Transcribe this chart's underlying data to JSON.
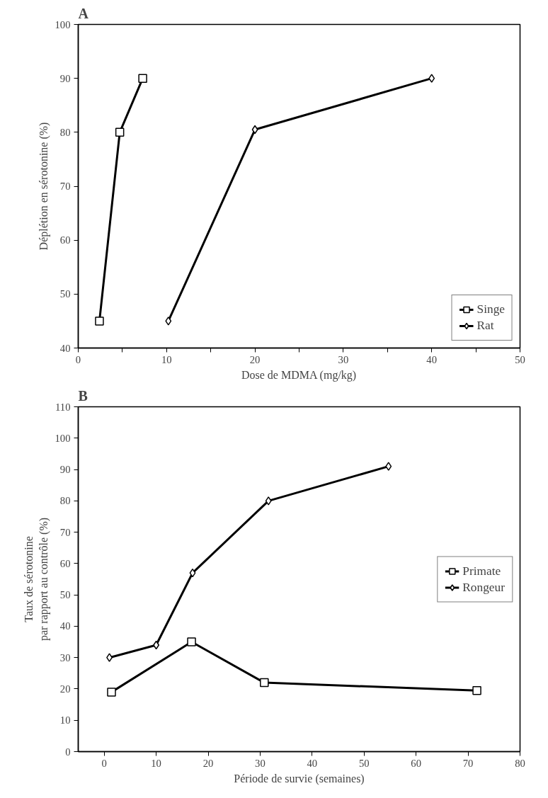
{
  "chart_data": [
    {
      "type": "line",
      "title": "A",
      "xlabel": "Dose de MDMA (mg/kg)",
      "ylabel": "Déplétion en sérotonine (%)",
      "xlim": [
        0,
        50
      ],
      "ylim": [
        40,
        100
      ],
      "xticks": [
        0,
        {
          "value": 5,
          "label": null
        },
        10,
        {
          "value": 15,
          "label": null
        },
        20,
        {
          "value": 25,
          "label": null
        },
        30,
        {
          "value": 35,
          "label": null
        },
        40,
        {
          "value": 45,
          "label": null
        },
        50
      ],
      "yticks": [
        40,
        50,
        60,
        70,
        80,
        90,
        100
      ],
      "grid": false,
      "legend": "bottom right",
      "series": [
        {
          "name": "Singe",
          "color": "#000000",
          "marker": "square",
          "x": [
            2.4,
            4.7,
            7.3
          ],
          "values": [
            45,
            80,
            90
          ]
        },
        {
          "name": "Rat",
          "color": "#000000",
          "marker": "diamond",
          "x": [
            10.2,
            20,
            40
          ],
          "values": [
            45,
            80.5,
            90
          ]
        }
      ]
    },
    {
      "type": "line",
      "title": "B",
      "xlabel": "Période de survie (semaines)",
      "ylabel": "Taux de sérotonine\npar rapport au contrôle (%)",
      "xlim": [
        -5,
        80
      ],
      "ylim": [
        0,
        110
      ],
      "xticks": [
        0,
        10,
        20,
        30,
        40,
        50,
        60,
        70,
        80
      ],
      "yticks": [
        0,
        10,
        20,
        30,
        40,
        50,
        60,
        70,
        80,
        90,
        100,
        110
      ],
      "grid": false,
      "legend": "right",
      "series": [
        {
          "name": "Primate",
          "color": "#000000",
          "marker": "square",
          "x": [
            1.4,
            16.8,
            30.8,
            71.7
          ],
          "values": [
            19,
            35,
            22,
            19.5
          ]
        },
        {
          "name": "Rongeur",
          "color": "#000000",
          "marker": "diamond",
          "x": [
            1,
            10,
            17,
            31.6,
            54.7
          ],
          "values": [
            30,
            34,
            57,
            80,
            91
          ]
        }
      ]
    }
  ]
}
